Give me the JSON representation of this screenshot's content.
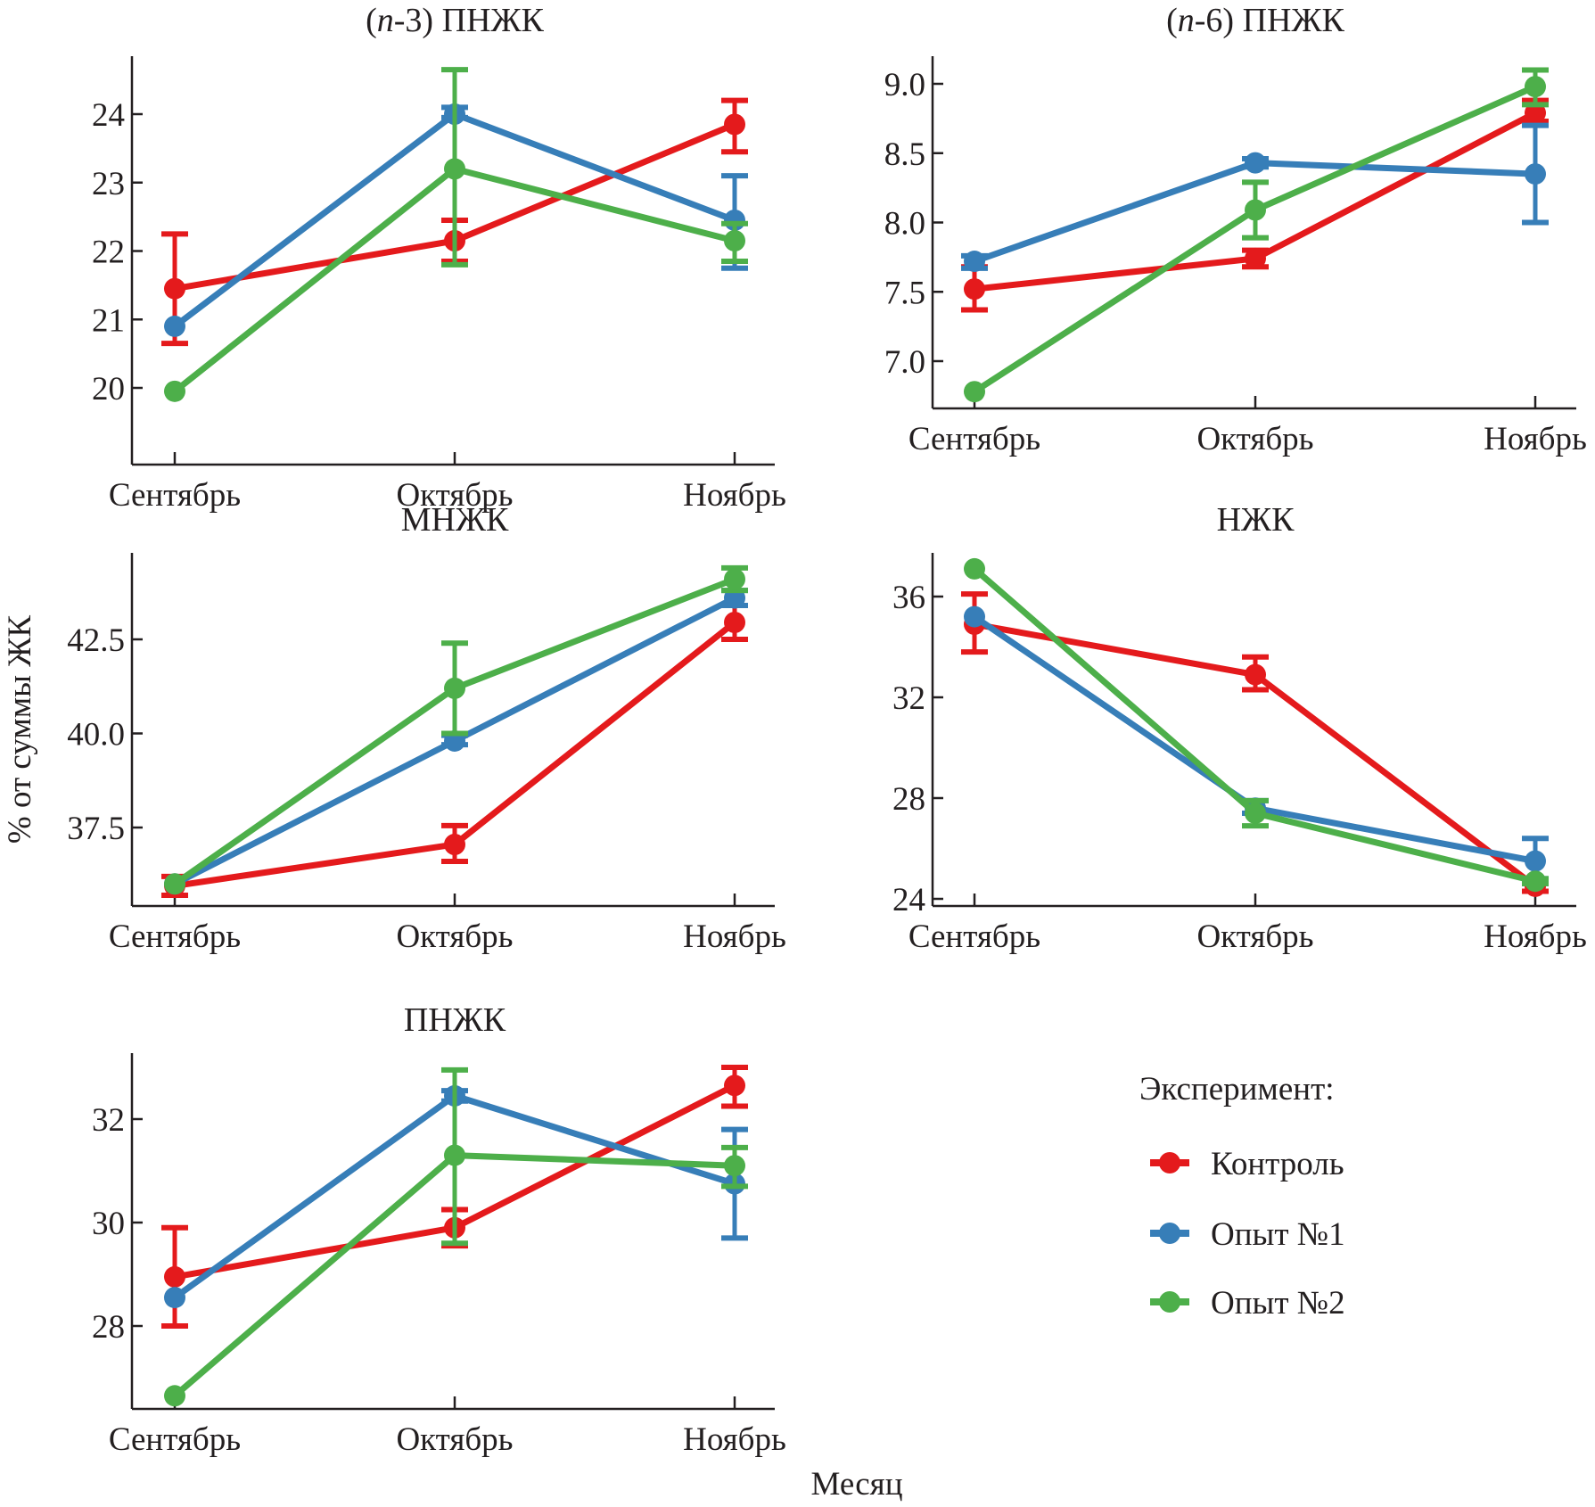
{
  "chart_data": {
    "type": "line",
    "x": [
      "Сентябрь",
      "Октябрь",
      "Ноябрь"
    ],
    "xlabel": "Месяц",
    "ylabel": "% от суммы ЖК",
    "legend": {
      "title": "Эксперимент:",
      "placement": "bottom-right",
      "entries": [
        {
          "name": "Контроль",
          "color": "#e41a1c"
        },
        {
          "name": "Опыт №1",
          "color": "#377eb8"
        },
        {
          "name": "Опыт №2",
          "color": "#4daf4a"
        }
      ]
    },
    "panels": [
      {
        "title_prefix": "(",
        "title_italic": "n",
        "title_suffix": "-3) ПНЖК",
        "title": "(n-3) ПНЖК",
        "yticks": [
          "20",
          "21",
          "22",
          "23",
          "24"
        ],
        "ytick_values": [
          20,
          21,
          22,
          23,
          24
        ],
        "ylim": [
          19.9,
          24.7
        ],
        "series": [
          {
            "name": "Контроль",
            "values": [
              21.45,
              22.15,
              23.85
            ],
            "err_low": [
              20.65,
              21.85,
              23.45
            ],
            "err_high": [
              22.25,
              22.45,
              24.2
            ]
          },
          {
            "name": "Опыт №1",
            "values": [
              20.9,
              24.0,
              22.45
            ],
            "err_low": [
              20.9,
              23.95,
              21.75
            ],
            "err_high": [
              20.9,
              24.1,
              23.1
            ]
          },
          {
            "name": "Опыт №2",
            "values": [
              19.95,
              23.2,
              22.15
            ],
            "err_low": [
              19.95,
              21.8,
              21.85
            ],
            "err_high": [
              19.95,
              24.65,
              22.4
            ]
          }
        ]
      },
      {
        "title_prefix": "(",
        "title_italic": "n",
        "title_suffix": "-6) ПНЖК",
        "title": "(n-6) ПНЖК",
        "yticks": [
          "7.0",
          "7.5",
          "8.0",
          "8.5",
          "9.0"
        ],
        "ytick_values": [
          7.0,
          7.5,
          8.0,
          8.5,
          9.0
        ],
        "ylim": [
          6.7,
          9.2
        ],
        "series": [
          {
            "name": "Контроль",
            "values": [
              7.52,
              7.74,
              8.79
            ],
            "err_low": [
              7.37,
              7.68,
              8.73
            ],
            "err_high": [
              7.68,
              7.8,
              8.88
            ]
          },
          {
            "name": "Опыт №1",
            "values": [
              7.72,
              8.43,
              8.35
            ],
            "err_low": [
              7.67,
              8.4,
              8.0
            ],
            "err_high": [
              7.76,
              8.46,
              8.7
            ]
          },
          {
            "name": "Опыт №2",
            "values": [
              6.78,
              8.09,
              8.98
            ],
            "err_low": [
              6.78,
              7.89,
              8.85
            ],
            "err_high": [
              6.78,
              8.29,
              9.1
            ]
          }
        ]
      },
      {
        "title": "МНЖК",
        "yticks": [
          "37.5",
          "40.0",
          "42.5"
        ],
        "ytick_values": [
          37.5,
          40.0,
          42.5
        ],
        "ylim": [
          35.3,
          44.8
        ],
        "series": [
          {
            "name": "Контроль",
            "values": [
              35.95,
              37.05,
              42.95
            ],
            "err_low": [
              35.7,
              36.6,
              42.5
            ],
            "err_high": [
              36.2,
              37.55,
              43.4
            ]
          },
          {
            "name": "Опыт №1",
            "values": [
              36.0,
              39.8,
              43.6
            ],
            "err_low": [
              36.0,
              39.7,
              43.4
            ],
            "err_high": [
              36.0,
              39.95,
              43.8
            ]
          },
          {
            "name": "Опыт №2",
            "values": [
              36.0,
              41.2,
              44.1
            ],
            "err_low": [
              36.0,
              40.0,
              43.8
            ],
            "err_high": [
              36.0,
              42.4,
              44.4
            ]
          }
        ]
      },
      {
        "title": "НЖК",
        "yticks": [
          "24",
          "28",
          "32",
          "36"
        ],
        "ytick_values": [
          24,
          28,
          32,
          36
        ],
        "ylim": [
          23.7,
          37.9
        ],
        "series": [
          {
            "name": "Контроль",
            "values": [
              34.9,
              32.9,
              24.5
            ],
            "err_low": [
              33.8,
              32.3,
              24.3
            ],
            "err_high": [
              36.1,
              33.6,
              24.7
            ]
          },
          {
            "name": "Опыт №1",
            "values": [
              35.2,
              27.6,
              25.5
            ],
            "err_low": [
              35.2,
              27.4,
              24.8
            ],
            "err_high": [
              35.2,
              27.9,
              26.4
            ]
          },
          {
            "name": "Опыт №2",
            "values": [
              37.1,
              27.4,
              24.7
            ],
            "err_low": [
              37.1,
              26.9,
              24.6
            ],
            "err_high": [
              37.1,
              27.9,
              24.8
            ]
          }
        ]
      },
      {
        "title": "ПНЖК",
        "yticks": [
          "28",
          "30",
          "32"
        ],
        "ytick_values": [
          28,
          30,
          32
        ],
        "ylim": [
          26.4,
          33.3
        ],
        "series": [
          {
            "name": "Контроль",
            "values": [
              28.95,
              29.9,
              32.65
            ],
            "err_low": [
              28.0,
              29.55,
              32.25
            ],
            "err_high": [
              29.9,
              30.25,
              33.0
            ]
          },
          {
            "name": "Опыт №1",
            "values": [
              28.55,
              32.45,
              30.75
            ],
            "err_low": [
              28.55,
              32.35,
              29.7
            ],
            "err_high": [
              28.55,
              32.55,
              31.8
            ]
          },
          {
            "name": "Опыт №2",
            "values": [
              26.65,
              31.3,
              31.1
            ],
            "err_low": [
              26.65,
              29.6,
              30.7
            ],
            "err_high": [
              26.65,
              32.95,
              31.45
            ]
          }
        ]
      }
    ]
  }
}
